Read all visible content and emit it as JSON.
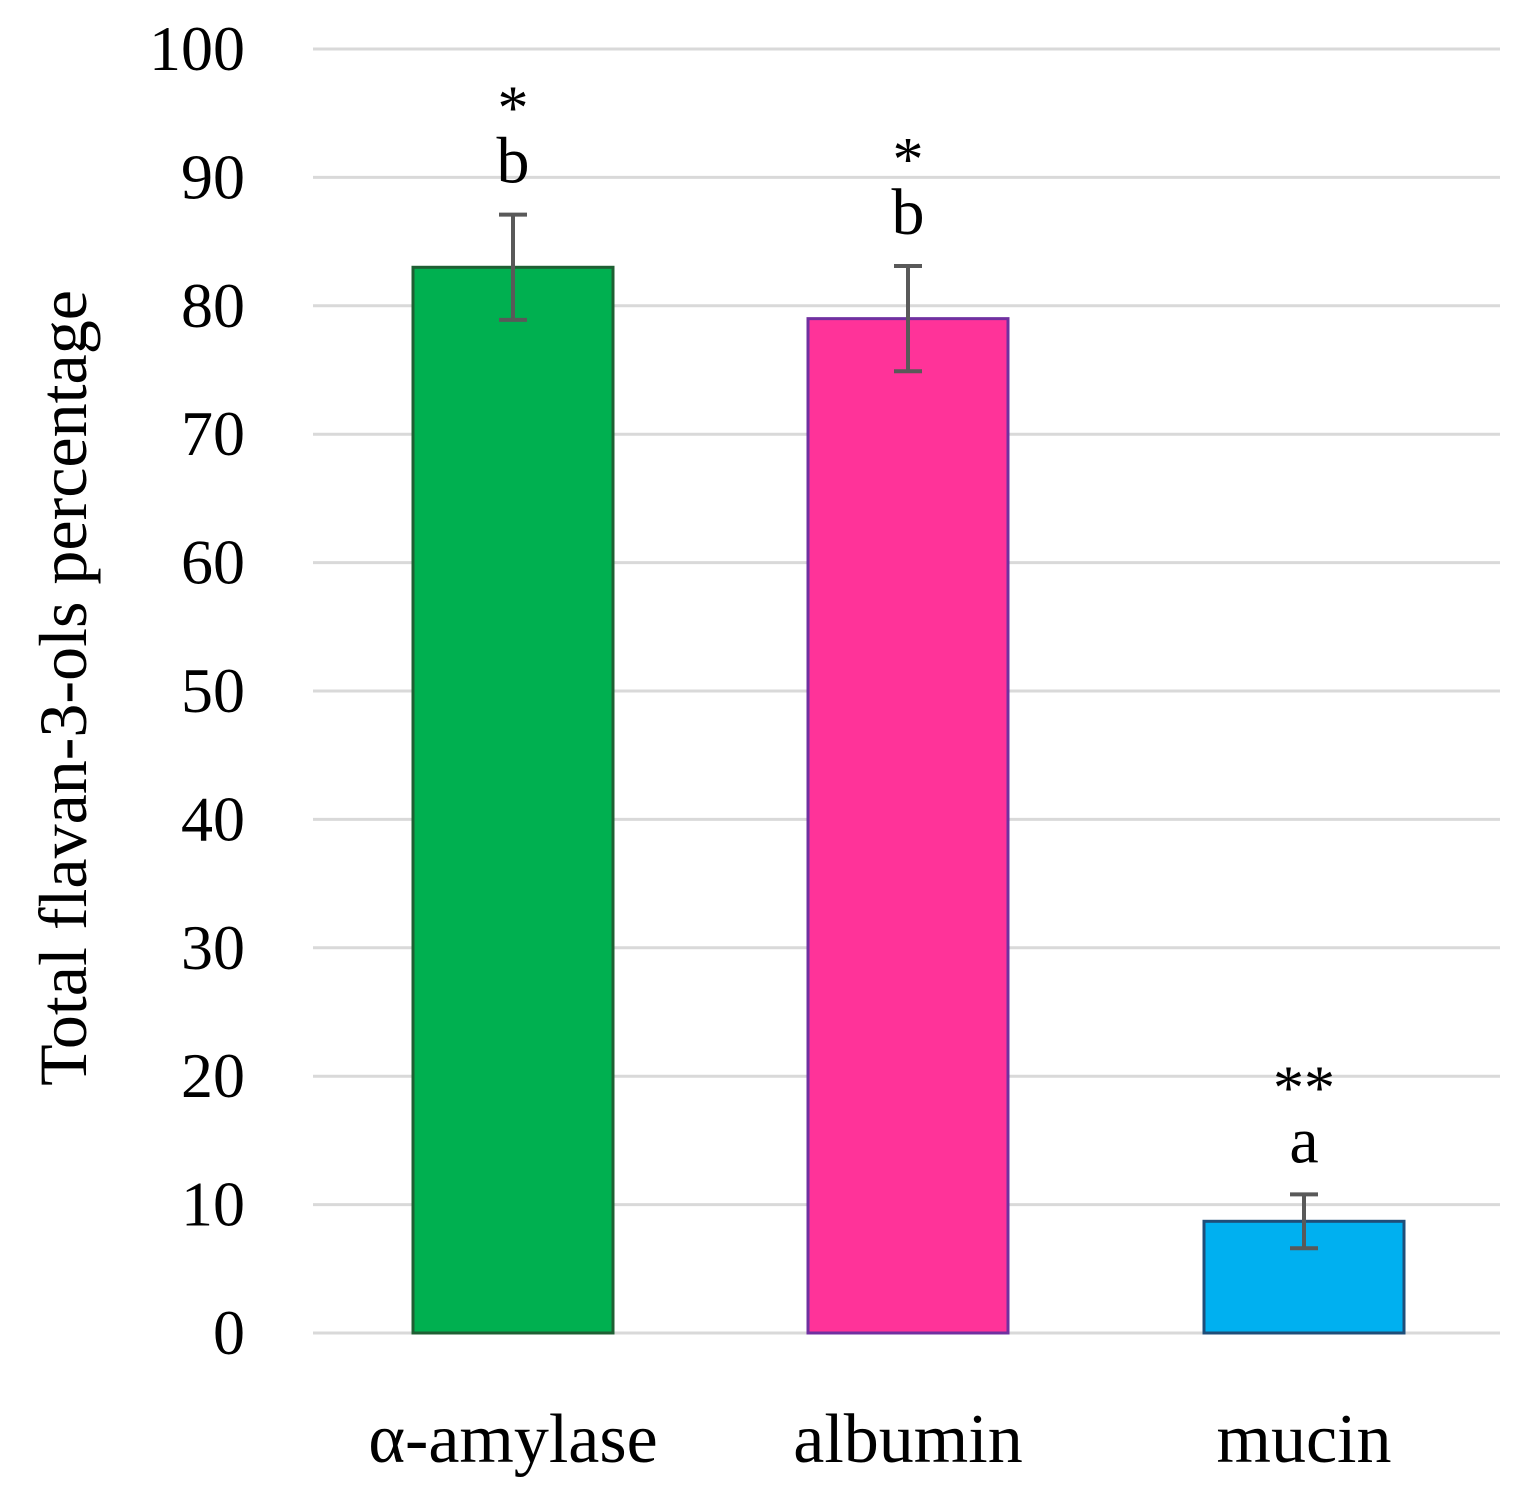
{
  "chart_data": {
    "type": "bar",
    "ylabel": "Total flavan-3-ols percentage",
    "xlabel": "",
    "ylim": [
      0,
      100
    ],
    "yticks": [
      0,
      10,
      20,
      30,
      40,
      50,
      60,
      70,
      80,
      90,
      100
    ],
    "grid": true,
    "categories": [
      "α-amylase",
      "albumin",
      "mucin"
    ],
    "values": [
      83,
      79,
      8.7
    ],
    "errors": [
      4.1,
      4.1,
      2.1
    ],
    "colors": [
      "#00b050",
      "#ff3399",
      "#00b0f0"
    ],
    "border_colors": [
      "#1f5f33",
      "#7030a0",
      "#1f4e79"
    ],
    "significance": [
      "*",
      "*",
      "**"
    ],
    "letters": [
      "b",
      "b",
      "a"
    ]
  }
}
